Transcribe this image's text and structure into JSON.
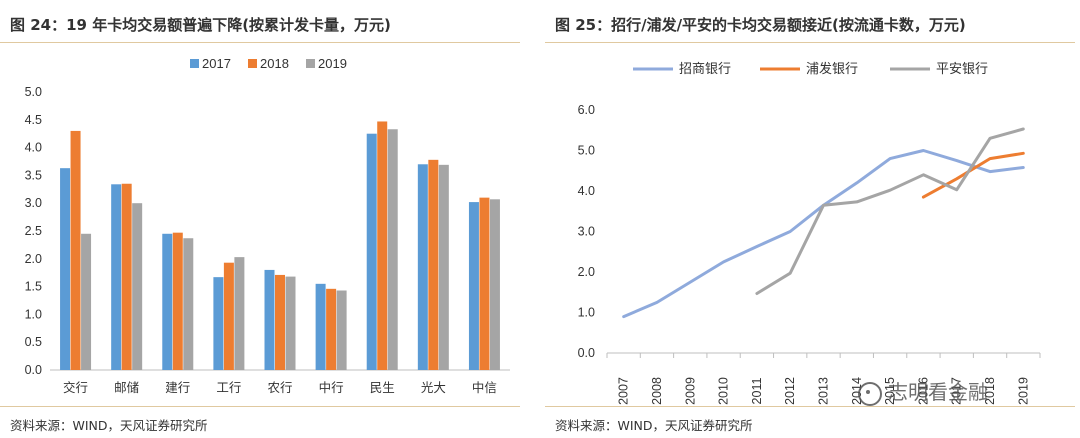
{
  "left": {
    "title": "图 24：19 年卡均交易额普遍下降(按累计发卡量，万元)",
    "source": "资料来源：WIND，天风证券研究所"
  },
  "right": {
    "title": "图 25：招行/浦发/平安的卡均交易额接近(按流通卡数，万元)",
    "source": "资料来源：WIND，天风证券研究所"
  },
  "watermark": "志明看金融",
  "colors": {
    "blue": "#5b9bd5",
    "orange": "#ed7d31",
    "gray": "#a5a5a5",
    "line_blue": "#8faadc",
    "rule": "#e0c9a0"
  },
  "chart_data": [
    {
      "type": "bar",
      "title": "图 24：19 年卡均交易额普遍下降(按累计发卡量，万元)",
      "categories": [
        "交行",
        "邮储",
        "建行",
        "工行",
        "农行",
        "中行",
        "民生",
        "光大",
        "中信"
      ],
      "series": [
        {
          "name": "2017",
          "color": "#5b9bd5",
          "values": [
            3.63,
            3.34,
            2.45,
            1.67,
            1.8,
            1.55,
            4.25,
            3.7,
            3.02
          ]
        },
        {
          "name": "2018",
          "color": "#ed7d31",
          "values": [
            4.3,
            3.35,
            2.47,
            1.93,
            1.71,
            1.46,
            4.47,
            3.78,
            3.1
          ]
        },
        {
          "name": "2019",
          "color": "#a5a5a5",
          "values": [
            2.45,
            3.0,
            2.37,
            2.03,
            1.68,
            1.43,
            4.33,
            3.69,
            3.07
          ]
        }
      ],
      "ylim": [
        0,
        5
      ],
      "yticks": [
        "0.0",
        "0.5",
        "1.0",
        "1.5",
        "2.0",
        "2.5",
        "3.0",
        "3.5",
        "4.0",
        "4.5",
        "5.0"
      ],
      "legend": "top",
      "grid": false
    },
    {
      "type": "line",
      "title": "图 25：招行/浦发/平安的卡均交易额接近(按流通卡数，万元)",
      "x": [
        "2007",
        "2008",
        "2009",
        "2010",
        "2011",
        "2012",
        "2013",
        "2014",
        "2015",
        "2016",
        "2017",
        "2018",
        "2019"
      ],
      "series": [
        {
          "name": "招商银行",
          "color": "#8faadc",
          "values": [
            0.9,
            1.25,
            1.75,
            2.25,
            2.63,
            3.0,
            3.65,
            4.2,
            4.8,
            5.0,
            4.75,
            4.48,
            4.58
          ]
        },
        {
          "name": "浦发银行",
          "color": "#ed7d31",
          "values": [
            null,
            null,
            null,
            null,
            null,
            null,
            null,
            null,
            null,
            3.85,
            4.3,
            4.8,
            4.93
          ]
        },
        {
          "name": "平安银行",
          "color": "#a5a5a5",
          "values": [
            null,
            null,
            null,
            null,
            1.47,
            1.97,
            3.65,
            3.73,
            4.02,
            4.4,
            4.03,
            5.3,
            5.53
          ]
        }
      ],
      "ylim": [
        0,
        6
      ],
      "yticks": [
        "0.0",
        "1.0",
        "2.0",
        "3.0",
        "4.0",
        "5.0",
        "6.0"
      ],
      "legend": "top",
      "grid": false
    }
  ]
}
